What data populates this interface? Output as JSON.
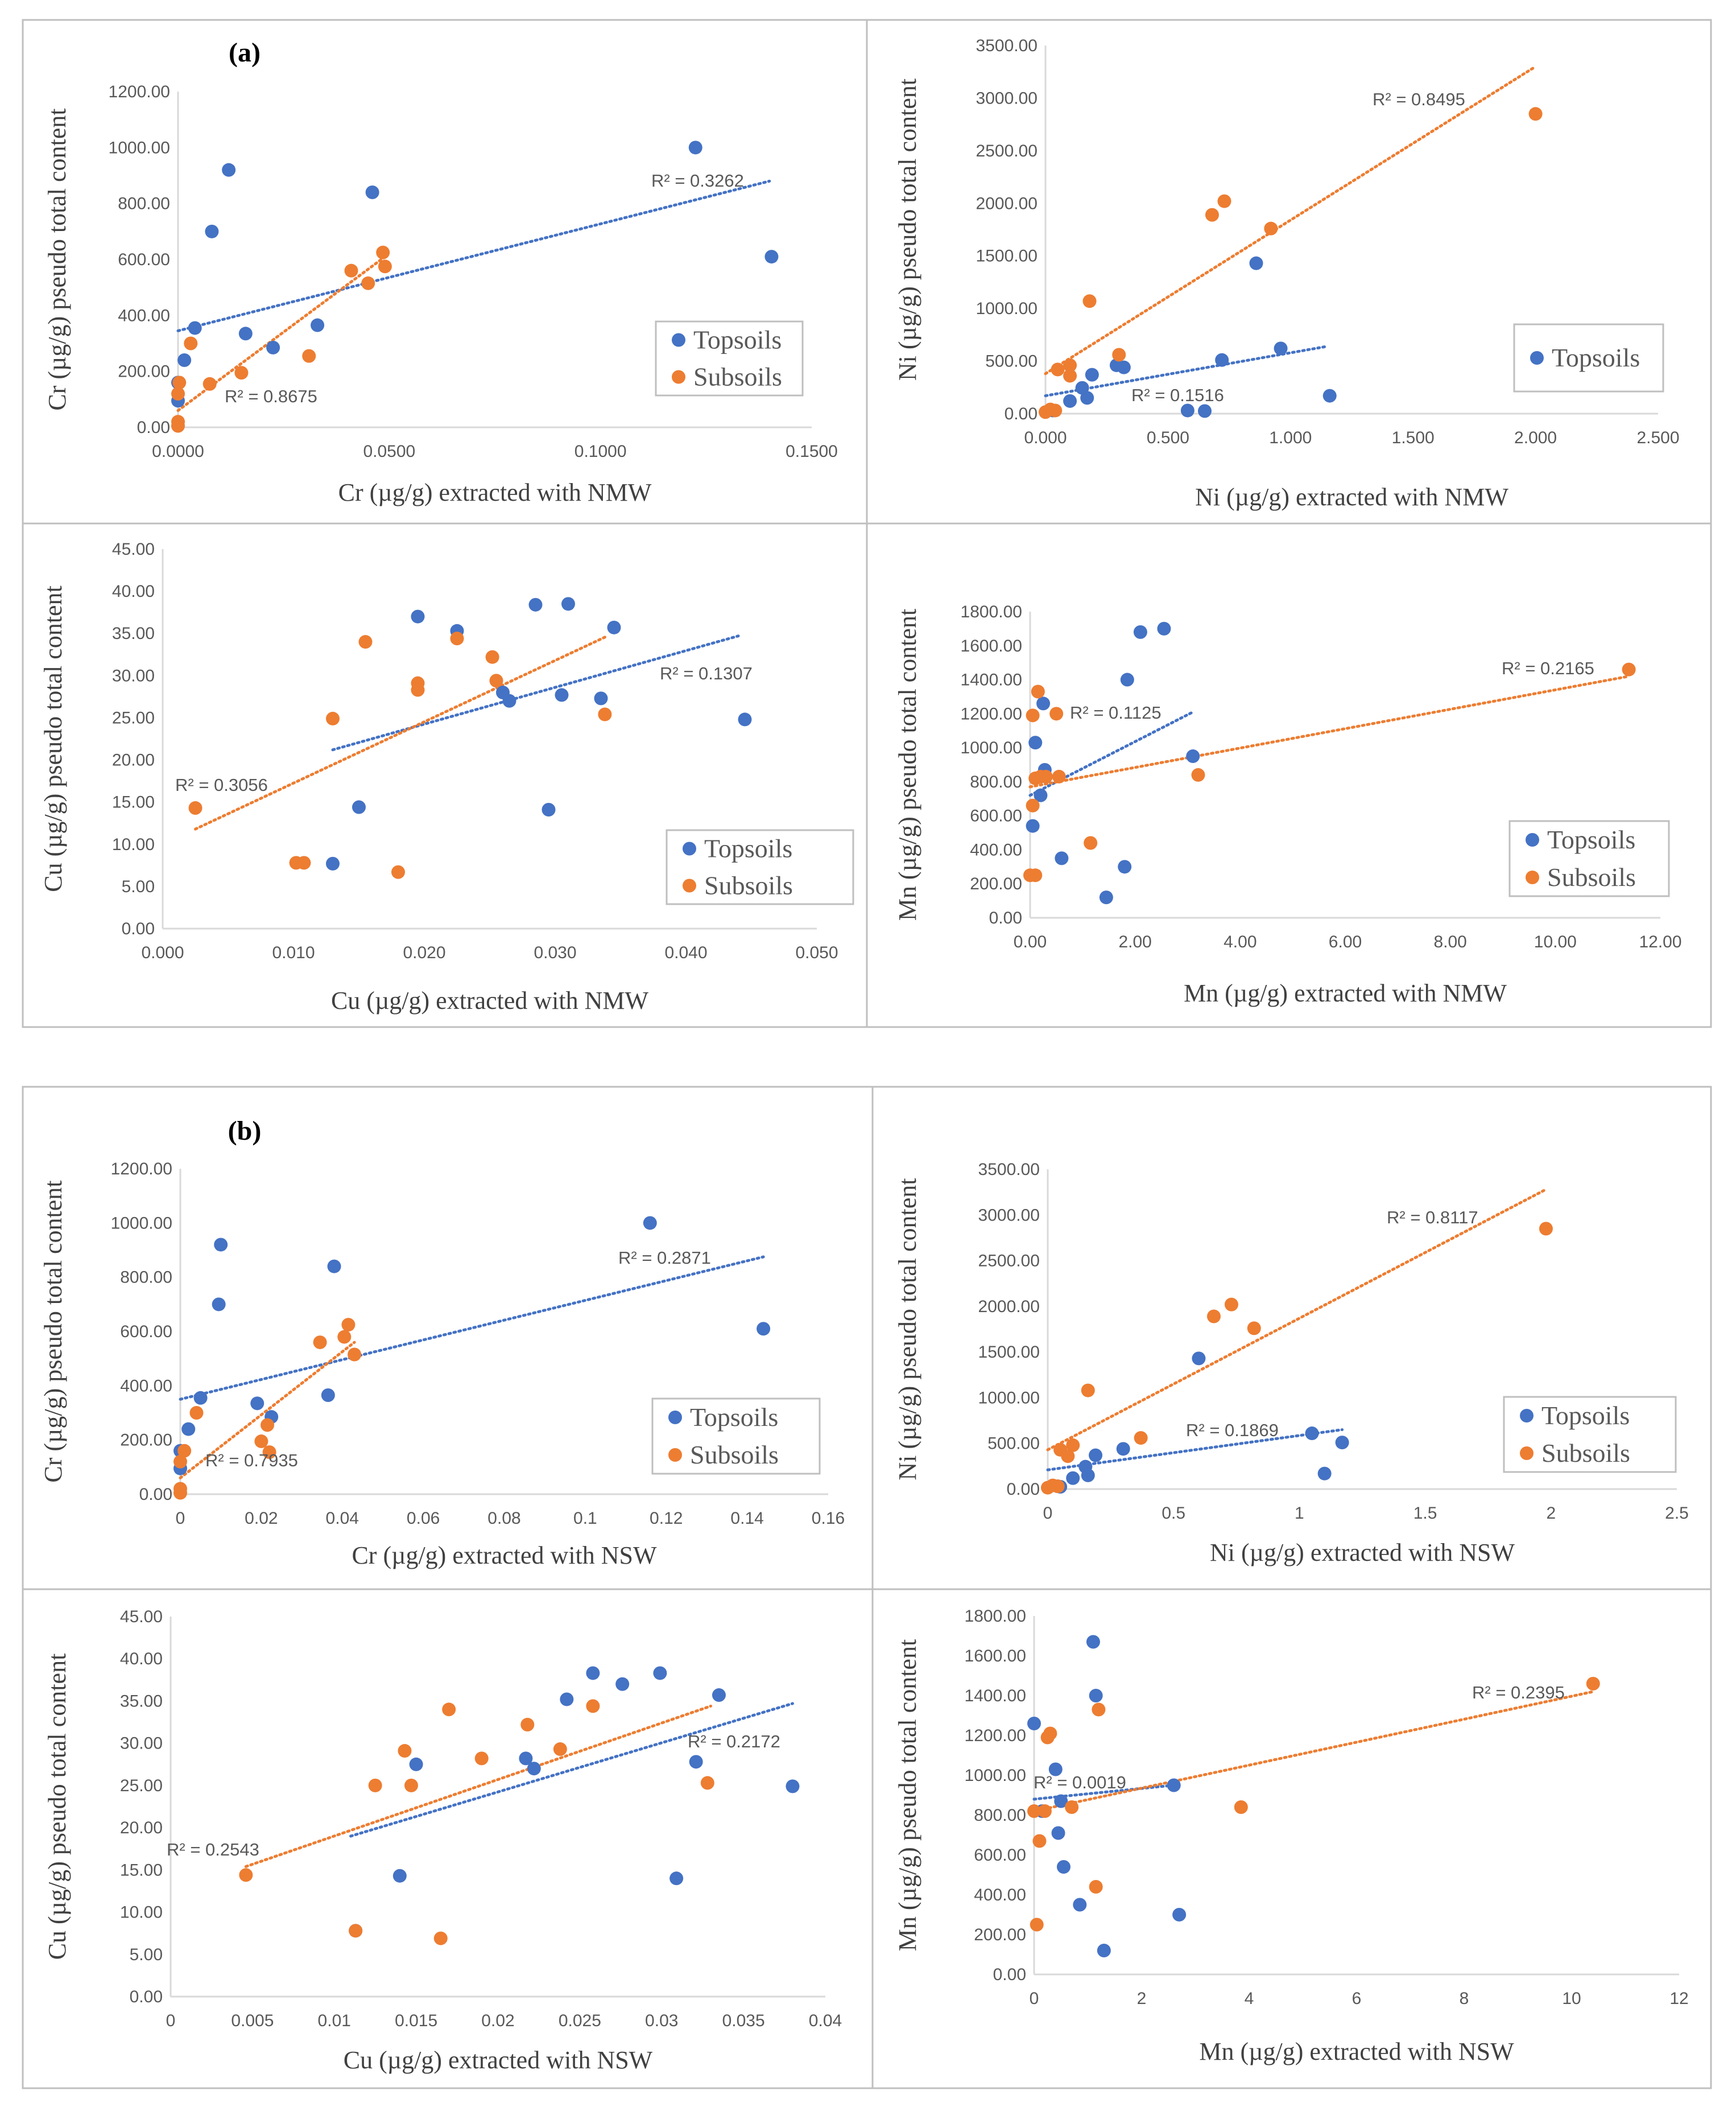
{
  "figure": {
    "panel_labels": [
      "(a)",
      "(b)"
    ],
    "colors": {
      "topsoils": "#4472c4",
      "subsoils": "#ed7d31",
      "axis": "#d9d9d9",
      "frame": "#bfbfbf"
    }
  },
  "chart_data": [
    {
      "type": "scatter",
      "panel": "a",
      "xlabel": "Cr (µg/g)  extracted with NMW",
      "ylabel": "Cr (µg/g)  pseudo total content",
      "xlim": [
        0,
        0.15
      ],
      "ylim": [
        0,
        1200
      ],
      "xticks": [
        "0.0000",
        "0.0500",
        "0.1000",
        "0.1500"
      ],
      "yticks": [
        "0.00",
        "200.00",
        "400.00",
        "600.00",
        "800.00",
        "1000.00",
        "1200.00"
      ],
      "legend": [
        "Topsoils",
        "Subsoils"
      ],
      "series": [
        {
          "name": "Topsoils",
          "color": "#4472c4",
          "r2": "R² = 0.3262",
          "x": [
            0.0,
            0.0,
            0.0015,
            0.004,
            0.008,
            0.012,
            0.016,
            0.0225,
            0.033,
            0.046,
            0.1225,
            0.1405
          ],
          "y": [
            95,
            160,
            240,
            355,
            700,
            920,
            335,
            285,
            365,
            840,
            1000,
            610
          ],
          "trend": [
            [
              0.0,
              345
            ],
            [
              0.14,
              880
            ]
          ]
        },
        {
          "name": "Subsoils",
          "color": "#ed7d31",
          "r2": "R² = 0.8675",
          "x": [
            0.0,
            0.0,
            0.0,
            0.0003,
            0.003,
            0.0075,
            0.015,
            0.031,
            0.041,
            0.045,
            0.0485,
            0.049
          ],
          "y": [
            5,
            20,
            120,
            160,
            300,
            155,
            195,
            255,
            560,
            515,
            625,
            575
          ],
          "trend": [
            [
              0.0,
              60
            ],
            [
              0.049,
              610
            ]
          ]
        }
      ]
    },
    {
      "type": "scatter",
      "panel": "a",
      "xlabel": "Ni (µg/g) extracted with NMW",
      "ylabel": "Ni (µg/g) pseudo total content",
      "xlim": [
        0,
        2.5
      ],
      "ylim": [
        0,
        3500
      ],
      "xticks": [
        "0.000",
        "0.500",
        "1.000",
        "1.500",
        "2.000",
        "2.500"
      ],
      "yticks": [
        "0.00",
        "500.00",
        "1000.00",
        "1500.00",
        "2000.00",
        "2500.00",
        "3000.00",
        "3500.00"
      ],
      "legend": [
        "Topsoils"
      ],
      "series": [
        {
          "name": "Topsoils",
          "color": "#4472c4",
          "r2": "R² = 0.1516",
          "x": [
            0.03,
            0.1,
            0.15,
            0.17,
            0.19,
            0.29,
            0.32,
            0.58,
            0.65,
            0.72,
            0.86,
            0.96,
            1.16
          ],
          "y": [
            30,
            120,
            245,
            150,
            370,
            460,
            440,
            30,
            25,
            510,
            1430,
            620,
            170
          ],
          "trend": [
            [
              0.0,
              170
            ],
            [
              1.15,
              640
            ]
          ]
        },
        {
          "name": "Subsoils",
          "color": "#ed7d31",
          "r2": "R² = 0.8495",
          "x": [
            0.0,
            0.02,
            0.04,
            0.05,
            0.1,
            0.1,
            0.18,
            0.3,
            0.68,
            0.73,
            0.92,
            2.0
          ],
          "y": [
            15,
            40,
            30,
            420,
            360,
            460,
            1070,
            560,
            1890,
            2020,
            1760,
            2850
          ],
          "trend": [
            [
              0.0,
              380
            ],
            [
              2.0,
              3300
            ]
          ]
        }
      ]
    },
    {
      "type": "scatter",
      "panel": "a",
      "xlabel": "Cu (µg/g) extracted with NMW",
      "ylabel": "Cu (µg/g) pseudo total content",
      "xlim": [
        0,
        0.05
      ],
      "ylim": [
        0,
        45
      ],
      "xticks": [
        "0.000",
        "0.010",
        "0.020",
        "0.030",
        "0.040",
        "0.050"
      ],
      "yticks": [
        "0.00",
        "5.00",
        "10.00",
        "15.00",
        "20.00",
        "25.00",
        "30.00",
        "35.00",
        "40.00",
        "45.00"
      ],
      "legend": [
        "Topsoils",
        "Subsoils"
      ],
      "series": [
        {
          "name": "Topsoils",
          "color": "#4472c4",
          "r2": "R² = 0.1307",
          "x": [
            0.013,
            0.015,
            0.0195,
            0.0225,
            0.026,
            0.0265,
            0.0285,
            0.0295,
            0.0305,
            0.031,
            0.0335,
            0.0345,
            0.0445
          ],
          "y": [
            7.7,
            14.4,
            37.0,
            35.3,
            28.0,
            27.0,
            38.4,
            14.1,
            27.7,
            38.5,
            27.3,
            35.7,
            24.8
          ],
          "trend": [
            [
              0.013,
              21.2
            ],
            [
              0.044,
              34.7
            ]
          ]
        },
        {
          "name": "Subsoils",
          "color": "#ed7d31",
          "r2": "R² = 0.3056",
          "x": [
            0.0025,
            0.0102,
            0.0108,
            0.013,
            0.0155,
            0.018,
            0.0195,
            0.0195,
            0.0225,
            0.0252,
            0.0255,
            0.0338
          ],
          "y": [
            14.3,
            7.8,
            7.8,
            24.9,
            34.0,
            6.7,
            28.3,
            29.1,
            34.4,
            32.2,
            29.4,
            25.4
          ],
          "trend": [
            [
              0.0025,
              11.8
            ],
            [
              0.034,
              34.7
            ]
          ]
        }
      ]
    },
    {
      "type": "scatter",
      "panel": "a",
      "xlabel": "Mn (µg/g) extracted with NMW",
      "ylabel": "Mn (µg/g) pseudo total content",
      "xlim": [
        0,
        12
      ],
      "ylim": [
        0,
        1800
      ],
      "xticks": [
        "0.00",
        "2.00",
        "4.00",
        "6.00",
        "8.00",
        "10.00",
        "12.00"
      ],
      "yticks": [
        "0.00",
        "200.00",
        "400.00",
        "600.00",
        "800.00",
        "1000.00",
        "1200.00",
        "1400.00",
        "1600.00",
        "1800.00"
      ],
      "legend": [
        "Topsoils",
        "Subsoils"
      ],
      "series": [
        {
          "name": "Topsoils",
          "color": "#4472c4",
          "r2": "R² = 0.1125",
          "x": [
            0.05,
            0.1,
            0.2,
            0.25,
            0.28,
            0.3,
            0.6,
            1.45,
            1.8,
            1.85,
            2.1,
            2.55,
            3.1
          ],
          "y": [
            540,
            1030,
            720,
            1260,
            870,
            830,
            350,
            120,
            300,
            1400,
            1680,
            1700,
            950
          ],
          "trend": [
            [
              0.0,
              720
            ],
            [
              3.1,
              1210
            ]
          ]
        },
        {
          "name": "Subsoils",
          "color": "#ed7d31",
          "r2": "R² = 0.2165",
          "x": [
            0.0,
            0.05,
            0.05,
            0.1,
            0.1,
            0.15,
            0.2,
            0.3,
            0.5,
            0.55,
            1.15,
            3.2,
            11.4
          ],
          "y": [
            250,
            1190,
            660,
            250,
            820,
            1330,
            830,
            830,
            1200,
            830,
            440,
            840,
            1460
          ],
          "trend": [
            [
              0.0,
              770
            ],
            [
              11.4,
              1420
            ]
          ]
        }
      ]
    },
    {
      "type": "scatter",
      "panel": "b",
      "xlabel": "Cr (µg/g)  extracted with NSW",
      "ylabel": "Cr (µg/g)  pseudo total content",
      "xlim": [
        0,
        0.16
      ],
      "ylim": [
        0,
        1200
      ],
      "xticks": [
        "0",
        "0.02",
        "0.04",
        "0.06",
        "0.08",
        "0.1",
        "0.12",
        "0.14",
        "0.16"
      ],
      "yticks": [
        "0.00",
        "200.00",
        "400.00",
        "600.00",
        "800.00",
        "1000.00",
        "1200.00"
      ],
      "legend": [
        "Topsoils",
        "Subsoils"
      ],
      "series": [
        {
          "name": "Topsoils",
          "color": "#4472c4",
          "r2": "R² = 0.2871",
          "x": [
            0.0,
            0.0,
            0.002,
            0.005,
            0.0095,
            0.01,
            0.019,
            0.0225,
            0.0365,
            0.038,
            0.116,
            0.144
          ],
          "y": [
            95,
            160,
            240,
            355,
            700,
            920,
            335,
            285,
            365,
            840,
            1000,
            610
          ],
          "trend": [
            [
              0.0,
              350
            ],
            [
              0.144,
              875
            ]
          ]
        },
        {
          "name": "Subsoils",
          "color": "#ed7d31",
          "r2": "R² = 0.7935",
          "x": [
            0.0,
            0.0,
            0.0,
            0.001,
            0.004,
            0.02,
            0.0215,
            0.022,
            0.0345,
            0.0405,
            0.0415,
            0.043
          ],
          "y": [
            5,
            20,
            120,
            160,
            300,
            195,
            255,
            155,
            560,
            580,
            625,
            515
          ],
          "trend": [
            [
              0.0,
              60
            ],
            [
              0.043,
              560
            ]
          ]
        }
      ]
    },
    {
      "type": "scatter",
      "panel": "b",
      "xlabel": "Ni (µg/g) extracted with NSW",
      "ylabel": "Ni (µg/g) pseudo total content",
      "xlim": [
        0,
        2.5
      ],
      "ylim": [
        0,
        3500
      ],
      "xticks": [
        "0",
        "0.5",
        "1",
        "1.5",
        "2",
        "2.5"
      ],
      "yticks": [
        "0.00",
        "500.00",
        "1000.00",
        "1500.00",
        "2000.00",
        "2500.00",
        "3000.00",
        "3500.00"
      ],
      "legend": [
        "Topsoils",
        "Subsoils"
      ],
      "series": [
        {
          "name": "Topsoils",
          "color": "#4472c4",
          "r2": "R² = 0.1869",
          "x": [
            0.04,
            0.05,
            0.1,
            0.15,
            0.16,
            0.19,
            0.3,
            0.6,
            1.05,
            1.1,
            1.17
          ],
          "y": [
            30,
            25,
            120,
            245,
            150,
            370,
            440,
            1430,
            610,
            170,
            510
          ],
          "trend": [
            [
              0.0,
              210
            ],
            [
              1.17,
              650
            ]
          ]
        },
        {
          "name": "Subsoils",
          "color": "#ed7d31",
          "r2": "R² = 0.8117",
          "x": [
            0.0,
            0.02,
            0.04,
            0.05,
            0.08,
            0.1,
            0.16,
            0.37,
            0.66,
            0.73,
            0.82,
            1.98
          ],
          "y": [
            15,
            40,
            30,
            430,
            360,
            480,
            1080,
            560,
            1890,
            2020,
            1760,
            2850
          ],
          "trend": [
            [
              0.0,
              430
            ],
            [
              1.98,
              3280
            ]
          ]
        }
      ]
    },
    {
      "type": "scatter",
      "panel": "b",
      "xlabel": "Cu (µg/g) extracted with NSW",
      "ylabel": "Cu (µg/g) pseudo total content",
      "xlim": [
        0,
        0.04
      ],
      "ylim": [
        0,
        45
      ],
      "xticks": [
        "0",
        "0.005",
        "0.01",
        "0.015",
        "0.02",
        "0.025",
        "0.03",
        "0.035",
        "0.04"
      ],
      "yticks": [
        "0.00",
        "5.00",
        "10.00",
        "15.00",
        "20.00",
        "25.00",
        "30.00",
        "35.00",
        "40.00",
        "45.00"
      ],
      "legend": [],
      "series": [
        {
          "name": "Topsoils",
          "color": "#4472c4",
          "r2": "R² = 0.2172",
          "x": [
            0.0113,
            0.014,
            0.015,
            0.0217,
            0.0222,
            0.0242,
            0.0258,
            0.0276,
            0.0299,
            0.0309,
            0.0321,
            0.0335,
            0.038
          ],
          "y": [
            7.8,
            14.3,
            27.5,
            28.2,
            27.0,
            35.2,
            38.3,
            37.0,
            38.3,
            14.0,
            27.8,
            35.7,
            24.9
          ],
          "trend": [
            [
              0.011,
              19.0
            ],
            [
              0.038,
              34.7
            ]
          ]
        },
        {
          "name": "Subsoils",
          "color": "#ed7d31",
          "r2": "R² = 0.2543",
          "x": [
            0.0046,
            0.0113,
            0.0125,
            0.0143,
            0.0147,
            0.0165,
            0.017,
            0.019,
            0.0218,
            0.0238,
            0.0258,
            0.0328
          ],
          "y": [
            14.4,
            7.8,
            25.0,
            29.1,
            25.0,
            6.9,
            34.0,
            28.2,
            32.2,
            29.3,
            34.4,
            25.3
          ],
          "trend": [
            [
              0.0046,
              15.4
            ],
            [
              0.033,
              34.4
            ]
          ]
        }
      ]
    },
    {
      "type": "scatter",
      "panel": "b",
      "xlabel": "Mn (µg/g) extracted with NSW",
      "ylabel": "Mn (µg/g) pseudo total content",
      "xlim": [
        0,
        12
      ],
      "ylim": [
        0,
        1800
      ],
      "xticks": [
        "0",
        "2",
        "4",
        "6",
        "8",
        "10",
        "12"
      ],
      "yticks": [
        "0.00",
        "200.00",
        "400.00",
        "600.00",
        "800.00",
        "1000.00",
        "1200.00",
        "1400.00",
        "1600.00",
        "1800.00"
      ],
      "legend": [],
      "series": [
        {
          "name": "Topsoils",
          "color": "#4472c4",
          "r2": "R² = 0.0019",
          "x": [
            0.0,
            0.15,
            0.4,
            0.45,
            0.5,
            0.55,
            0.85,
            1.1,
            1.15,
            1.3,
            2.6,
            2.7
          ],
          "y": [
            1260,
            820,
            1030,
            710,
            870,
            540,
            350,
            1670,
            1400,
            120,
            950,
            300
          ],
          "trend": [
            [
              0.0,
              880
            ],
            [
              2.6,
              950
            ]
          ]
        },
        {
          "name": "Subsoils",
          "color": "#ed7d31",
          "r2": "R² = 0.2395",
          "x": [
            0.0,
            0.05,
            0.1,
            0.2,
            0.25,
            0.3,
            0.7,
            1.15,
            1.2,
            3.85,
            10.4
          ],
          "y": [
            820,
            250,
            670,
            820,
            1190,
            1210,
            840,
            440,
            1330,
            840,
            1460
          ],
          "trend": [
            [
              0.0,
              820
            ],
            [
              10.4,
              1420
            ]
          ]
        }
      ]
    }
  ]
}
